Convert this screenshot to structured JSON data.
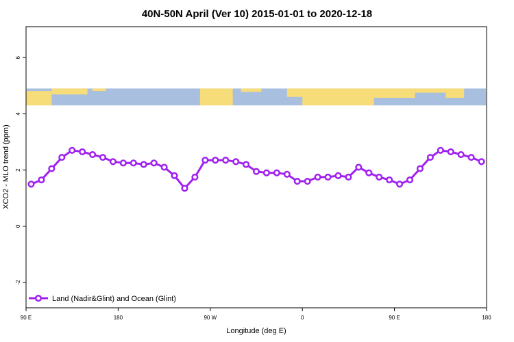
{
  "chart_data": {
    "type": "line",
    "title": "40N-50N April (Ver 10)   2015-01-01 to 2020-12-18",
    "xlabel": "Longitude (deg E)",
    "ylabel": "XCO2 - MLO trend (ppm)",
    "xlim": [
      90,
      540
    ],
    "ylim": [
      -2.9,
      7.1
    ],
    "x_ticks": [
      {
        "value": 90,
        "label": "90 E"
      },
      {
        "value": 180,
        "label": "180"
      },
      {
        "value": 270,
        "label": "90 W"
      },
      {
        "value": 360,
        "label": "0"
      },
      {
        "value": 450,
        "label": "90 E"
      },
      {
        "value": 540,
        "label": "180"
      }
    ],
    "y_ticks": [
      {
        "value": -2,
        "label": "-2"
      },
      {
        "value": 0,
        "label": "0"
      },
      {
        "value": 2,
        "label": "2"
      },
      {
        "value": 4,
        "label": "4"
      },
      {
        "value": 6,
        "label": "6"
      }
    ],
    "grid": false,
    "legend_position": "bottom-left",
    "series": [
      {
        "name": "Land (Nadir&Glint) and Ocean (Glint)",
        "color": "#a020f0",
        "x": [
          95,
          105,
          115,
          125,
          135,
          145,
          155,
          165,
          175,
          185,
          195,
          205,
          215,
          225,
          235,
          245,
          255,
          265,
          275,
          285,
          295,
          305,
          315,
          325,
          335,
          345,
          355,
          365,
          375,
          385,
          395,
          405,
          415,
          425,
          435,
          445,
          455,
          465,
          475,
          485,
          495,
          505,
          515,
          525,
          535
        ],
        "y": [
          1.5,
          1.65,
          2.05,
          2.45,
          2.7,
          2.65,
          2.55,
          2.45,
          2.3,
          2.25,
          2.25,
          2.2,
          2.25,
          2.1,
          1.8,
          1.35,
          1.75,
          2.35,
          2.35,
          2.35,
          2.3,
          2.2,
          1.95,
          1.9,
          1.9,
          1.85,
          1.6,
          1.6,
          1.75,
          1.75,
          1.8,
          1.75,
          2.1,
          1.9,
          1.75,
          1.65,
          1.5,
          1.65,
          2.05,
          2.45,
          2.7,
          2.65,
          2.55,
          2.45,
          2.3
        ]
      }
    ],
    "map_band": {
      "land_color": "#f7dc7a",
      "ocean_color": "#a8bfe0",
      "y_range": [
        4.3,
        4.9
      ]
    }
  }
}
